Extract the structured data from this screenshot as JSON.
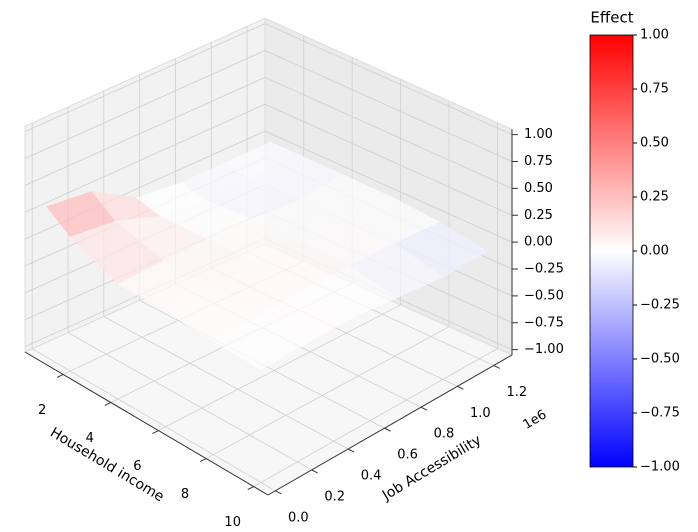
{
  "chart_data": {
    "type": "surface",
    "xlabel": "Household income",
    "ylabel": "Job Accessibility",
    "y_offset_label": "1e6",
    "x": [
      1,
      2,
      4,
      6,
      8,
      10
    ],
    "y": [
      0,
      250000,
      500000,
      750000,
      1000000,
      1250000
    ],
    "z": [
      [
        0.35,
        0.3,
        0.05,
        0,
        0,
        0
      ],
      [
        0.2,
        0.15,
        0,
        -0.05,
        -0.05,
        0
      ],
      [
        0.02,
        0.03,
        0.02,
        0,
        -0.03,
        0
      ],
      [
        0.02,
        0.03,
        0.03,
        0.02,
        0,
        0
      ],
      [
        0,
        0.02,
        0.02,
        0.02,
        0,
        -0.03
      ],
      [
        0,
        0,
        0,
        -0.05,
        -0.1,
        -0.1
      ]
    ],
    "xlim": [
      0.4,
      10.6
    ],
    "ylim": [
      -40000,
      1300000
    ],
    "zlim": [
      -1.05,
      1.05
    ],
    "xticks": [
      2,
      4,
      6,
      8,
      10
    ],
    "yticks": [
      {
        "value": 0,
        "label": "0.0"
      },
      {
        "value": 200000,
        "label": "0.2"
      },
      {
        "value": 400000,
        "label": "0.4"
      },
      {
        "value": 600000,
        "label": "0.6"
      },
      {
        "value": 800000,
        "label": "0.8"
      },
      {
        "value": 1000000,
        "label": "1.0"
      },
      {
        "value": 1200000,
        "label": "1.2"
      }
    ],
    "zticks": [
      {
        "value": 1,
        "label": "1.00"
      },
      {
        "value": 0.75,
        "label": "0.75"
      },
      {
        "value": 0.5,
        "label": "0.50"
      },
      {
        "value": 0.25,
        "label": "0.25"
      },
      {
        "value": 0,
        "label": "0.00"
      },
      {
        "value": -0.25,
        "label": "−0.25"
      },
      {
        "value": -0.5,
        "label": "−0.50"
      },
      {
        "value": -0.75,
        "label": "−0.75"
      },
      {
        "value": -1,
        "label": "−1.00"
      }
    ],
    "grid": true,
    "colormap": [
      "#0000ff",
      "#ffffff",
      "#ff0000"
    ],
    "colorbar": {
      "label": "Effect",
      "clim": [
        -1,
        1
      ],
      "ticks": [
        {
          "value": 1,
          "label": "1.00"
        },
        {
          "value": 0.75,
          "label": "0.75"
        },
        {
          "value": 0.5,
          "label": "0.50"
        },
        {
          "value": 0.25,
          "label": "0.25"
        },
        {
          "value": 0,
          "label": "0.00"
        },
        {
          "value": -0.25,
          "label": "−0.25"
        },
        {
          "value": -0.5,
          "label": "−0.50"
        },
        {
          "value": -0.75,
          "label": "−0.75"
        },
        {
          "value": -1,
          "label": "−1.00"
        }
      ]
    }
  }
}
